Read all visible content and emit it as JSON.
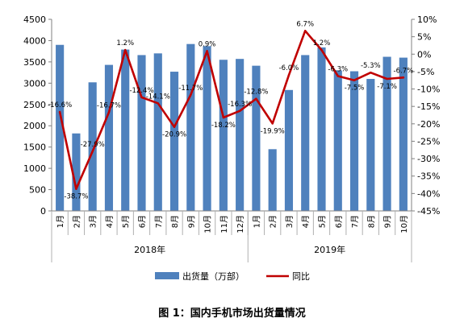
{
  "caption": "图 1：国内手机市场出货量情况",
  "chart_data": {
    "type": "bar",
    "categories": [
      "1月",
      "2月",
      "3月",
      "4月",
      "5月",
      "6月",
      "7月",
      "8月",
      "9月",
      "10月",
      "11月",
      "12月",
      "1月",
      "2月",
      "3月",
      "4月",
      "5月",
      "6月",
      "7月",
      "8月",
      "9月",
      "10月"
    ],
    "groups": [
      {
        "label": "2018年",
        "count": 12
      },
      {
        "label": "2019年",
        "count": 10
      }
    ],
    "series": [
      {
        "name": "出货量（万部）",
        "type": "bar",
        "axis": "left",
        "color": "#4f81bd",
        "values": [
          3900,
          1820,
          3020,
          3430,
          3790,
          3660,
          3700,
          3270,
          3920,
          3870,
          3550,
          3570,
          3410,
          1450,
          2840,
          3660,
          3840,
          3300,
          3280,
          3100,
          3620,
          3600
        ]
      },
      {
        "name": "同比",
        "type": "line",
        "axis": "right",
        "color": "#c00000",
        "values": [
          -16.6,
          -38.7,
          -27.9,
          -16.7,
          1.2,
          -12.4,
          -14.1,
          -20.9,
          -11.7,
          0.9,
          -18.2,
          -16.3,
          -12.8,
          -19.9,
          -6.0,
          6.7,
          1.2,
          -6.3,
          -7.5,
          -5.3,
          -7.1,
          -6.7
        ],
        "labels": [
          "-16.6%",
          "-38.7%",
          "-27.9%",
          "-16.7%",
          "1.2%",
          "-12.4%",
          "-14.1%",
          "-20.9%",
          "-11.7%",
          "0.9%",
          "-18.2%",
          "-16.3%",
          "-12.8%",
          "-19.9%",
          "-6.0%",
          "6.7%",
          "1.2%",
          "-6.3%",
          "-7.5%",
          "-5.3%",
          "-7.1%",
          "-6.7%"
        ]
      }
    ],
    "y_left": {
      "min": 0,
      "max": 4500,
      "step": 500,
      "ticks": [
        "0",
        "500",
        "1000",
        "1500",
        "2000",
        "2500",
        "3000",
        "3500",
        "4000",
        "4500"
      ]
    },
    "y_right": {
      "min": -45,
      "max": 10,
      "step": 5,
      "ticks": [
        "10%",
        "5%",
        "0%",
        "-5%",
        "-10%",
        "-15%",
        "-20%",
        "-25%",
        "-30%",
        "-35%",
        "-40%",
        "-45%"
      ]
    },
    "legend_position": "bottom",
    "grid": false
  }
}
